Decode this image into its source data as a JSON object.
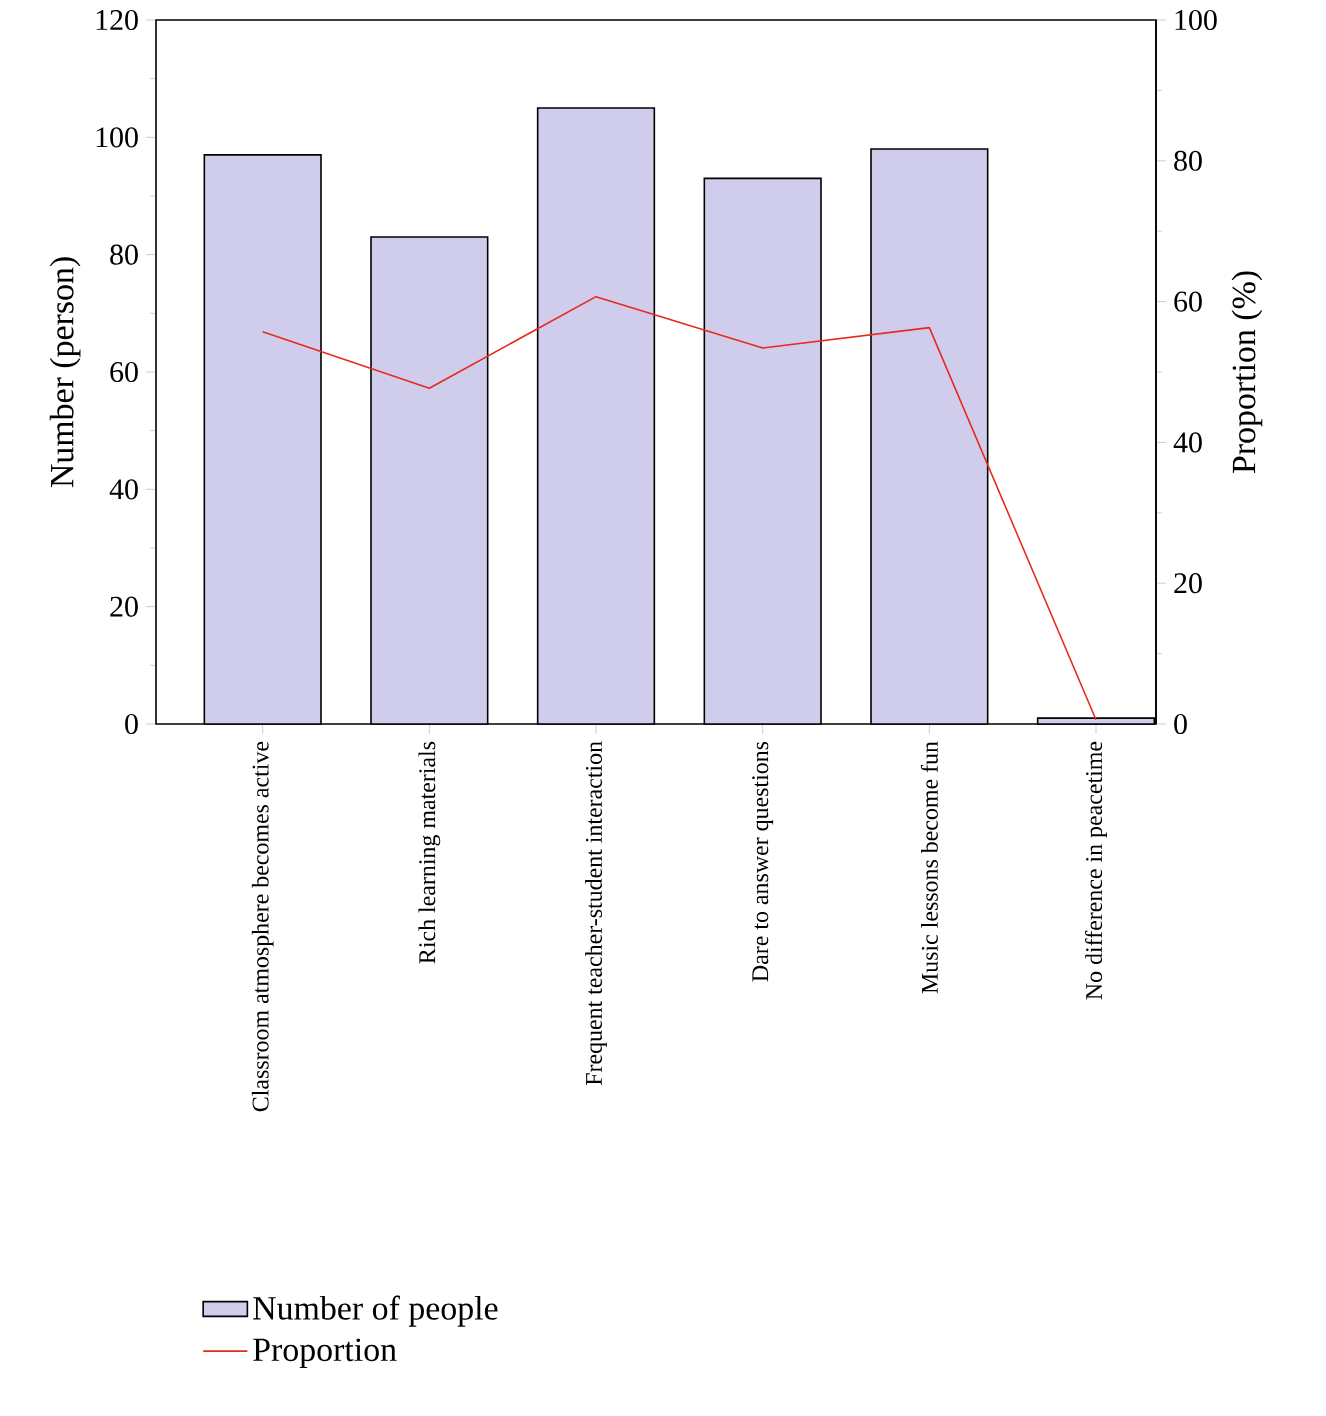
{
  "chart_data": {
    "type": "bar",
    "categories": [
      "Classroom atmosphere becomes active",
      "Rich learning materials",
      "Frequent teacher-student interaction",
      "Dare to answer questions",
      "Music lessons become fun",
      "No difference in peacetime"
    ],
    "ylabel": "Number (person)",
    "y2label": "Proportion (%)",
    "ylim": [
      0,
      120
    ],
    "yticks": [
      0,
      20,
      40,
      60,
      80,
      100,
      120
    ],
    "y2lim": [
      0,
      100
    ],
    "y2ticks": [
      0,
      20,
      40,
      60,
      80,
      100
    ],
    "legend": "bottom left",
    "series": [
      {
        "name": "Number of people",
        "color": "#d0cdec",
        "values": [
          97,
          83,
          105,
          93,
          98,
          1
        ]
      },
      {
        "name": "Proportion",
        "type": "line",
        "axis": "y2",
        "color": "#e8291c",
        "values": [
          55.7,
          47.7,
          60.7,
          53.4,
          56.3,
          0.6
        ]
      }
    ]
  }
}
